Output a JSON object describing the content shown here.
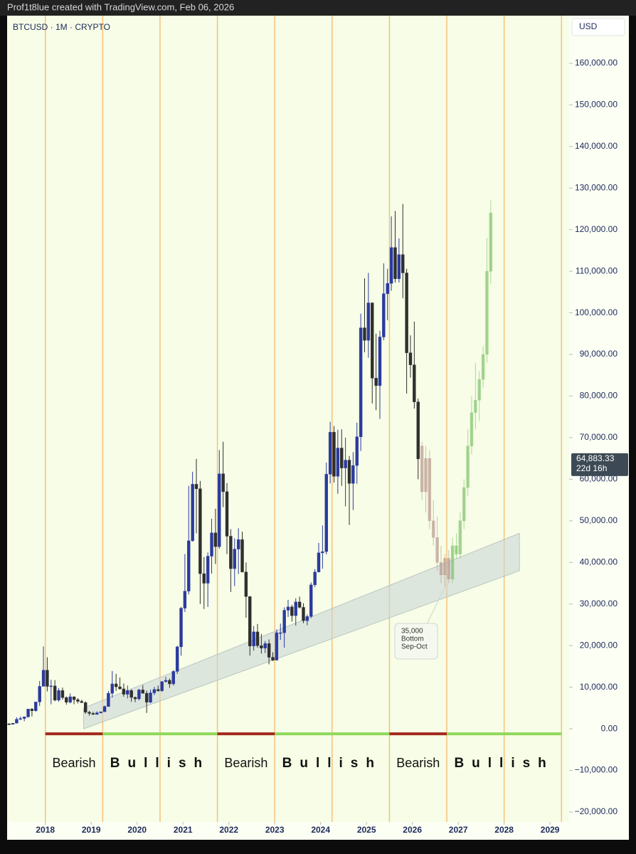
{
  "header": {
    "credit": "Prof1t8lue created with TradingView.com, Feb 06, 2026"
  },
  "chart_data": {
    "type": "candlestick",
    "title": "BTCUSD · 1M · CRYPTO",
    "currency": "USD",
    "xlim": [
      "2017-03",
      "2029-06"
    ],
    "ylim": [
      -22400,
      171450
    ],
    "xticks": [
      {
        "value": "2018-01",
        "label": "2018"
      },
      {
        "value": "2019-01",
        "label": "2019"
      },
      {
        "value": "2020-01",
        "label": "2020"
      },
      {
        "value": "2021-01",
        "label": "2021"
      },
      {
        "value": "2022-01",
        "label": "2022"
      },
      {
        "value": "2023-01",
        "label": "2023"
      },
      {
        "value": "2024-01",
        "label": "2024"
      },
      {
        "value": "2025-01",
        "label": "2025"
      },
      {
        "value": "2026-01",
        "label": "2026"
      },
      {
        "value": "2027-01",
        "label": "2027"
      },
      {
        "value": "2028-01",
        "label": "2028"
      },
      {
        "value": "2029-01",
        "label": "2029"
      }
    ],
    "yticks": [
      {
        "value": -20000,
        "label": "−20,000.00"
      },
      {
        "value": -10000,
        "label": "−10,000.00"
      },
      {
        "value": 0,
        "label": "0.00"
      },
      {
        "value": 10000,
        "label": "10,000.00"
      },
      {
        "value": 20000,
        "label": "20,000.00"
      },
      {
        "value": 30000,
        "label": "30,000.00"
      },
      {
        "value": 40000,
        "label": "40,000.00"
      },
      {
        "value": 50000,
        "label": "50,000.00"
      },
      {
        "value": 60000,
        "label": "60,000.00"
      },
      {
        "value": 70000,
        "label": "70,000.00"
      },
      {
        "value": 80000,
        "label": "80,000.00"
      },
      {
        "value": 90000,
        "label": "90,000.00"
      },
      {
        "value": 100000,
        "label": "100,000.00"
      },
      {
        "value": 110000,
        "label": "110,000.00"
      },
      {
        "value": 120000,
        "label": "120,000.00"
      },
      {
        "value": 130000,
        "label": "130,000.00"
      },
      {
        "value": 140000,
        "label": "140,000.00"
      },
      {
        "value": 150000,
        "label": "150,000.00"
      },
      {
        "value": 160000,
        "label": "160,000.00"
      }
    ],
    "up_color": "#2b3a9e",
    "down_color": "#2f2f2f",
    "candles": {
      "x": [
        "2017-03",
        "2017-04",
        "2017-05",
        "2017-06",
        "2017-07",
        "2017-08",
        "2017-09",
        "2017-10",
        "2017-11",
        "2017-12",
        "2018-01",
        "2018-02",
        "2018-03",
        "2018-04",
        "2018-05",
        "2018-06",
        "2018-07",
        "2018-08",
        "2018-09",
        "2018-10",
        "2018-11",
        "2018-12",
        "2019-01",
        "2019-02",
        "2019-03",
        "2019-04",
        "2019-05",
        "2019-06",
        "2019-07",
        "2019-08",
        "2019-09",
        "2019-10",
        "2019-11",
        "2019-12",
        "2020-01",
        "2020-02",
        "2020-03",
        "2020-04",
        "2020-05",
        "2020-06",
        "2020-07",
        "2020-08",
        "2020-09",
        "2020-10",
        "2020-11",
        "2020-12",
        "2021-01",
        "2021-02",
        "2021-03",
        "2021-04",
        "2021-05",
        "2021-06",
        "2021-07",
        "2021-08",
        "2021-09",
        "2021-10",
        "2021-11",
        "2021-12",
        "2022-01",
        "2022-02",
        "2022-03",
        "2022-04",
        "2022-05",
        "2022-06",
        "2022-07",
        "2022-08",
        "2022-09",
        "2022-10",
        "2022-11",
        "2022-12",
        "2023-01",
        "2023-02",
        "2023-03",
        "2023-04",
        "2023-05",
        "2023-06",
        "2023-07",
        "2023-08",
        "2023-09",
        "2023-10",
        "2023-11",
        "2023-12",
        "2024-01",
        "2024-02",
        "2024-03",
        "2024-04",
        "2024-05",
        "2024-06",
        "2024-07",
        "2024-08",
        "2024-09",
        "2024-10",
        "2024-11",
        "2024-12",
        "2025-01",
        "2025-02",
        "2025-03",
        "2025-04",
        "2025-05",
        "2025-06",
        "2025-07",
        "2025-08",
        "2025-09",
        "2025-10",
        "2025-11",
        "2025-12",
        "2026-01",
        "2026-02"
      ],
      "open": [
        1190,
        1080,
        1350,
        2300,
        2480,
        2870,
        4740,
        4340,
        6450,
        10200,
        14100,
        10200,
        10300,
        6900,
        9200,
        7500,
        6400,
        7700,
        7000,
        6600,
        6300,
        4000,
        3700,
        3450,
        3850,
        4100,
        5350,
        8550,
        10800,
        10100,
        9600,
        8300,
        9200,
        7550,
        7200,
        9350,
        8550,
        6400,
        8650,
        9450,
        9150,
        11350,
        11650,
        10800,
        13800,
        19700,
        29000,
        33100,
        45200,
        58800,
        57700,
        37300,
        35000,
        41500,
        47100,
        43800,
        61300,
        57000,
        46300,
        38500,
        43200,
        45500,
        37700,
        31800,
        19900,
        23300,
        20000,
        19400,
        20500,
        17200,
        16500,
        23100,
        23100,
        28500,
        29300,
        27200,
        30500,
        29200,
        26000,
        27000,
        34600,
        37700,
        42300,
        42600,
        61200,
        71300,
        60700,
        67500,
        62700,
        64600,
        59000,
        63300,
        70200,
        96400,
        93400,
        102400,
        84300,
        82500,
        94200,
        104600,
        107100,
        115700,
        108200,
        114000,
        109600,
        90400,
        87500,
        78600
      ],
      "high": [
        1350,
        1350,
        2760,
        2980,
        2920,
        4760,
        4980,
        6470,
        11500,
        19800,
        17200,
        11800,
        11700,
        9800,
        9900,
        7800,
        8500,
        7800,
        7400,
        7000,
        6600,
        4300,
        4100,
        4200,
        4100,
        5600,
        9100,
        13900,
        13200,
        12300,
        10900,
        10400,
        9500,
        7750,
        9600,
        10500,
        9200,
        9450,
        10100,
        10400,
        11450,
        12500,
        12100,
        14100,
        19950,
        29300,
        42000,
        58400,
        61800,
        64900,
        59600,
        41300,
        42400,
        50500,
        52900,
        67000,
        69000,
        59100,
        48000,
        45800,
        48200,
        47400,
        40000,
        31900,
        24700,
        25200,
        22800,
        21100,
        21500,
        18400,
        23900,
        25300,
        29200,
        31000,
        29800,
        31400,
        31800,
        30200,
        27500,
        35200,
        38400,
        44700,
        48900,
        64000,
        73800,
        72800,
        71900,
        72000,
        70000,
        65600,
        66500,
        73600,
        99800,
        108300,
        109600,
        102500,
        95000,
        95700,
        111900,
        110600,
        123200,
        124500,
        117900,
        126200,
        110600,
        94600,
        97900,
        79400
      ],
      "low": [
        890,
        1080,
        1350,
        2080,
        1830,
        2670,
        2980,
        4120,
        5500,
        10200,
        9000,
        5900,
        6600,
        6500,
        7000,
        5800,
        6100,
        5900,
        6100,
        6200,
        3600,
        3150,
        3350,
        3400,
        3700,
        4100,
        5300,
        7500,
        9100,
        9400,
        7700,
        7300,
        6500,
        6400,
        6850,
        8450,
        3800,
        6150,
        8100,
        8900,
        8900,
        11100,
        9850,
        10400,
        13200,
        17600,
        28100,
        32300,
        45000,
        47000,
        30000,
        28800,
        29300,
        37300,
        39600,
        43300,
        53300,
        42000,
        32900,
        34300,
        37200,
        37600,
        26700,
        17600,
        18800,
        19500,
        18100,
        18200,
        15500,
        16300,
        16500,
        21400,
        19500,
        26900,
        25800,
        24800,
        28900,
        25400,
        24900,
        26600,
        34100,
        37600,
        38500,
        41900,
        59000,
        59200,
        56500,
        58400,
        53500,
        49000,
        52600,
        58900,
        66800,
        90500,
        89200,
        78200,
        76600,
        74500,
        93400,
        98200,
        105300,
        107300,
        107300,
        103500,
        80600,
        84400,
        77000,
        60000
      ],
      "close": [
        1080,
        1350,
        2300,
        2480,
        2870,
        4740,
        4340,
        6450,
        10200,
        14100,
        10200,
        10300,
        6900,
        9200,
        7500,
        6400,
        7700,
        7000,
        6600,
        6300,
        4000,
        3700,
        3450,
        3850,
        4100,
        5350,
        8550,
        10800,
        10100,
        9600,
        8300,
        9200,
        7550,
        7200,
        9350,
        8550,
        6400,
        8650,
        9450,
        9150,
        11350,
        11650,
        10800,
        13800,
        19700,
        29000,
        33100,
        45200,
        58800,
        57700,
        37300,
        35000,
        41500,
        47100,
        43800,
        61300,
        57000,
        46300,
        38500,
        43200,
        45500,
        37700,
        31800,
        19900,
        23300,
        20000,
        19400,
        20500,
        17200,
        16500,
        23100,
        23100,
        28500,
        29300,
        27200,
        30500,
        29200,
        26000,
        27000,
        34600,
        37700,
        42300,
        42600,
        61200,
        71300,
        60700,
        67500,
        62700,
        64600,
        59000,
        63300,
        70200,
        96400,
        93400,
        102400,
        84300,
        82500,
        94200,
        104600,
        107100,
        115700,
        108200,
        114000,
        109600,
        90400,
        87500,
        78600,
        64883.33
      ]
    },
    "projection": [
      {
        "color": "#b7958b",
        "x": [
          "2026-03",
          "2026-04",
          "2026-05",
          "2026-06",
          "2026-07",
          "2026-08",
          "2026-09",
          "2026-10"
        ],
        "open": [
          68000,
          57000,
          65000,
          50000,
          46000,
          40000,
          37000,
          41000
        ],
        "high": [
          69000,
          68000,
          67000,
          55000,
          51000,
          44000,
          42000,
          43000
        ],
        "low": [
          55000,
          52000,
          48000,
          44000,
          38000,
          35000,
          34000,
          35000
        ],
        "close": [
          57000,
          65000,
          50000,
          46000,
          40000,
          37000,
          41000,
          36000
        ]
      },
      {
        "color": "#7cbf68",
        "x": [
          "2026-11",
          "2026-12",
          "2027-01",
          "2027-02",
          "2027-03",
          "2027-04",
          "2027-05",
          "2027-06",
          "2027-07",
          "2027-08",
          "2027-09"
        ],
        "open": [
          36000,
          44000,
          42000,
          50000,
          58000,
          68000,
          76000,
          79000,
          84000,
          90000,
          110000
        ],
        "high": [
          46000,
          47000,
          52000,
          60000,
          72000,
          80000,
          88000,
          86000,
          92000,
          118000,
          127000
        ],
        "low": [
          35000,
          41000,
          41000,
          48000,
          56000,
          66000,
          72000,
          74000,
          82000,
          88000,
          107000
        ],
        "close": [
          44000,
          42000,
          50000,
          58000,
          68000,
          76000,
          79000,
          84000,
          90000,
          110000,
          124000
        ]
      }
    ],
    "channel": {
      "x": [
        "2018-11",
        "2028-05"
      ],
      "lower": [
        0,
        38000
      ],
      "upper": [
        5000,
        47000
      ]
    },
    "cycle_lines": {
      "color": "#f6c27c",
      "x": [
        "2018-01",
        "2019-04",
        "2020-07",
        "2021-10",
        "2023-01",
        "2024-04",
        "2025-07",
        "2026-10",
        "2028-01",
        "2029-04"
      ]
    },
    "phases": [
      {
        "label": "Bearish",
        "start": "2018-01",
        "end": "2019-04",
        "color": "#a5281b"
      },
      {
        "label": "Bullish",
        "start": "2019-04",
        "end": "2021-10",
        "color": "#8fd85a"
      },
      {
        "label": "Bearish",
        "start": "2021-10",
        "end": "2023-01",
        "color": "#a5281b"
      },
      {
        "label": "Bullish",
        "start": "2023-01",
        "end": "2025-07",
        "color": "#8fd85a"
      },
      {
        "label": "Bearish",
        "start": "2025-07",
        "end": "2026-10",
        "color": "#a5281b"
      },
      {
        "label": "Bullish",
        "start": "2026-10",
        "end": "2029-04",
        "color": "#8fd85a"
      }
    ],
    "annotation": {
      "lines": [
        "35,000",
        "Bottom",
        "Sep-Oct"
      ],
      "x": "2026-10",
      "value": 35000
    },
    "last_price": {
      "label": "64,883.33",
      "countdown": "22d 16h"
    }
  }
}
